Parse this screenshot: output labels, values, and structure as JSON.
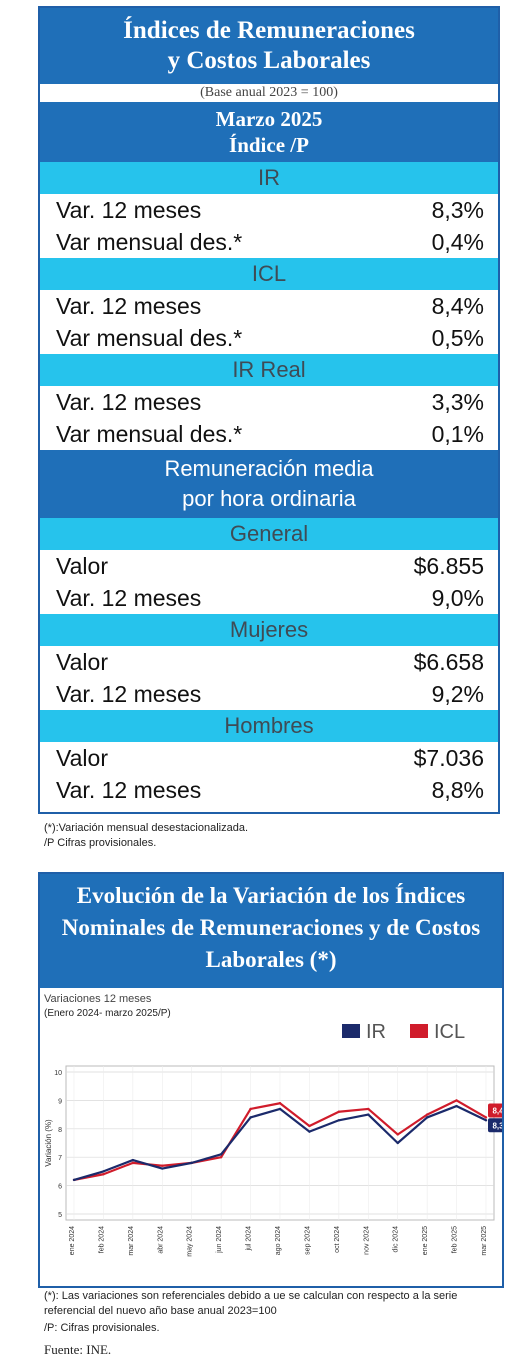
{
  "table": {
    "title_line1": "Índices de Remuneraciones",
    "title_line2": "y Costos Laborales",
    "base": "(Base anual 2023 = 100)",
    "period": "Marzo 2025",
    "index_label": "Índice /P",
    "sections": [
      {
        "name": "IR",
        "rows": [
          {
            "label": "Var. 12 meses",
            "value": "8,3%"
          },
          {
            "label": "Var mensual des.*",
            "value": "0,4%"
          }
        ]
      },
      {
        "name": "ICL",
        "rows": [
          {
            "label": "Var. 12 meses",
            "value": "8,4%"
          },
          {
            "label": "Var mensual des.*",
            "value": "0,5%"
          }
        ]
      },
      {
        "name": "IR Real",
        "rows": [
          {
            "label": "Var. 12 meses",
            "value": "3,3%"
          },
          {
            "label": "Var mensual des.*",
            "value": "0,1%"
          }
        ]
      }
    ],
    "hourly_line1": "Remuneración media",
    "hourly_line2": "por hora ordinaria",
    "hourly_sections": [
      {
        "name": "General",
        "rows": [
          {
            "label": "Valor",
            "value": "$6.855"
          },
          {
            "label": "Var. 12 meses",
            "value": "9,0%"
          }
        ]
      },
      {
        "name": "Mujeres",
        "rows": [
          {
            "label": "Valor",
            "value": "$6.658"
          },
          {
            "label": "Var. 12 meses",
            "value": "9,2%"
          }
        ]
      },
      {
        "name": "Hombres",
        "rows": [
          {
            "label": "Valor",
            "value": "$7.036"
          },
          {
            "label": "Var. 12 meses",
            "value": "8,8%"
          }
        ]
      }
    ],
    "footnote1": "(*):Variación mensual desestacionalizada.",
    "footnote2": "/P Cifras provisionales."
  },
  "chart_header": {
    "line1": "Evolución de la Variación de los Índices",
    "line2": "Nominales de Remuneraciones y de Costos",
    "line3": "Laborales (*)"
  },
  "chart_data": {
    "type": "line",
    "subtitle": "Variaciones 12 meses",
    "subtitle2": "(Enero 2024- marzo 2025/P)",
    "ylabel": "Variación (%)",
    "ylim": [
      5,
      10
    ],
    "yticks": [
      "5",
      "6",
      "7",
      "8",
      "9",
      "10"
    ],
    "categories": [
      "ene 2024",
      "feb 2024",
      "mar 2024",
      "abr 2024",
      "may 2024",
      "jun 2024",
      "jul 2024",
      "ago 2024",
      "sep 2024",
      "oct 2024",
      "nov 2024",
      "dic 2024",
      "ene 2025",
      "feb 2025",
      "mar 2025"
    ],
    "series": [
      {
        "name": "IR",
        "color": "#1b2a6b",
        "values": [
          6.2,
          6.5,
          6.9,
          6.6,
          6.8,
          7.1,
          8.4,
          8.7,
          7.9,
          8.3,
          8.5,
          7.5,
          8.4,
          8.8,
          8.3
        ]
      },
      {
        "name": "ICL",
        "color": "#d01c2b",
        "values": [
          6.2,
          6.4,
          6.8,
          6.7,
          6.8,
          7.0,
          8.7,
          8.9,
          8.1,
          8.6,
          8.7,
          7.8,
          8.5,
          9.0,
          8.4
        ]
      }
    ],
    "end_labels": {
      "IR": "8,3",
      "ICL": "8,4"
    },
    "grid": true,
    "legend": "top-right"
  },
  "chart_footnote1": "(*): Las variaciones son referenciales debido a ue se calculan con respecto a la serie",
  "chart_footnote2": "referencial del nuevo año base anual 2023=100",
  "chart_footnote3": "/P: Cifras provisionales.",
  "source": "Fuente: INE."
}
